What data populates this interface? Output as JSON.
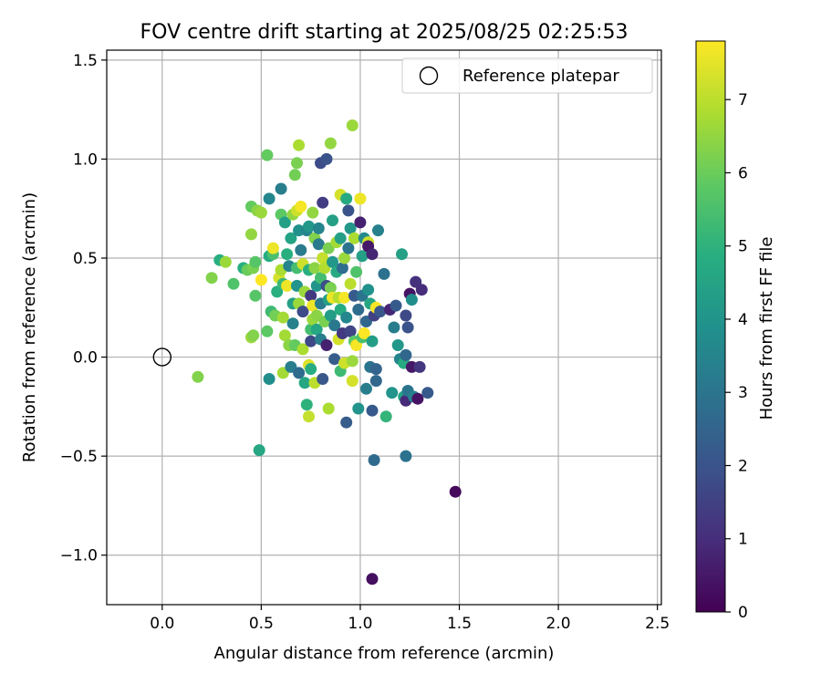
{
  "chart_data": {
    "type": "scatter",
    "title": "FOV centre drift starting at 2025/08/25 02:25:53",
    "xlabel": "Angular distance from reference (arcmin)",
    "ylabel": "Rotation from reference (arcmin)",
    "xlim": [
      -0.28,
      2.52
    ],
    "ylim": [
      -1.25,
      1.55
    ],
    "xticks": [
      0.0,
      0.5,
      1.0,
      1.5,
      2.0,
      2.5
    ],
    "xtick_labels": [
      "0.0",
      "0.5",
      "1.0",
      "1.5",
      "2.0",
      "2.5"
    ],
    "yticks": [
      -1.0,
      -0.5,
      0.0,
      0.5,
      1.0,
      1.5
    ],
    "ytick_labels": [
      "−1.0",
      "−0.5",
      "0.0",
      "0.5",
      "1.0",
      "1.5"
    ],
    "grid": true,
    "legend": {
      "placement": "top-right",
      "entries": [
        {
          "label": "Reference platepar",
          "marker": "open-circle"
        }
      ]
    },
    "reference_point": {
      "x": 0.0,
      "y": 0.0
    },
    "colorbar": {
      "label": "Hours from first FF file",
      "min": 0,
      "max": 7.8,
      "ticks": [
        0,
        1,
        2,
        3,
        4,
        5,
        6,
        7
      ],
      "tick_labels": [
        "0",
        "1",
        "2",
        "3",
        "4",
        "5",
        "6",
        "7"
      ],
      "colormap": "viridis"
    },
    "points": [
      {
        "x": 1.48,
        "y": -0.68,
        "c": 0.2
      },
      {
        "x": 1.06,
        "y": -1.12,
        "c": 0.3
      },
      {
        "x": 1.07,
        "y": -0.52,
        "c": 2.7
      },
      {
        "x": 1.23,
        "y": -0.5,
        "c": 2.9
      },
      {
        "x": 0.49,
        "y": -0.47,
        "c": 4.6
      },
      {
        "x": 0.18,
        "y": -0.1,
        "c": 6.3
      },
      {
        "x": 0.25,
        "y": 0.4,
        "c": 6.3
      },
      {
        "x": 0.29,
        "y": 0.49,
        "c": 4.9
      },
      {
        "x": 0.32,
        "y": 0.48,
        "c": 6.6
      },
      {
        "x": 0.36,
        "y": 0.37,
        "c": 5.6
      },
      {
        "x": 0.41,
        "y": 0.45,
        "c": 4.9
      },
      {
        "x": 0.43,
        "y": 0.44,
        "c": 6.0
      },
      {
        "x": 0.46,
        "y": 0.45,
        "c": 6.2
      },
      {
        "x": 0.45,
        "y": 0.62,
        "c": 6.5
      },
      {
        "x": 0.45,
        "y": 0.1,
        "c": 6.6
      },
      {
        "x": 0.46,
        "y": 0.11,
        "c": 6.3
      },
      {
        "x": 0.45,
        "y": 0.76,
        "c": 5.9
      },
      {
        "x": 0.48,
        "y": 0.74,
        "c": 6.4
      },
      {
        "x": 0.5,
        "y": 0.73,
        "c": 6.6
      },
      {
        "x": 0.47,
        "y": 0.31,
        "c": 5.7
      },
      {
        "x": 0.47,
        "y": 0.48,
        "c": 5.7
      },
      {
        "x": 0.5,
        "y": 0.39,
        "c": 7.8
      },
      {
        "x": 0.53,
        "y": 1.02,
        "c": 5.9
      },
      {
        "x": 0.54,
        "y": 0.8,
        "c": 3.6
      },
      {
        "x": 0.53,
        "y": 0.13,
        "c": 5.8
      },
      {
        "x": 0.54,
        "y": -0.11,
        "c": 3.8
      },
      {
        "x": 0.54,
        "y": 0.51,
        "c": 4.8
      },
      {
        "x": 0.55,
        "y": 0.23,
        "c": 5.3
      },
      {
        "x": 0.56,
        "y": 0.52,
        "c": 5.5
      },
      {
        "x": 0.56,
        "y": 0.55,
        "c": 7.6
      },
      {
        "x": 0.57,
        "y": 0.21,
        "c": 6.1
      },
      {
        "x": 0.58,
        "y": 0.33,
        "c": 4.9
      },
      {
        "x": 0.59,
        "y": 0.4,
        "c": 7.3
      },
      {
        "x": 0.6,
        "y": 0.85,
        "c": 3.3
      },
      {
        "x": 0.6,
        "y": 0.72,
        "c": 5.8
      },
      {
        "x": 0.6,
        "y": 0.44,
        "c": 6.8
      },
      {
        "x": 0.61,
        "y": 0.37,
        "c": 5.2
      },
      {
        "x": 0.61,
        "y": -0.08,
        "c": 6.7
      },
      {
        "x": 0.61,
        "y": 0.2,
        "c": 6.7
      },
      {
        "x": 0.62,
        "y": 0.68,
        "c": 4.4
      },
      {
        "x": 0.62,
        "y": 0.11,
        "c": 6.7
      },
      {
        "x": 0.63,
        "y": 0.36,
        "c": 7.6
      },
      {
        "x": 0.63,
        "y": 0.52,
        "c": 4.9
      },
      {
        "x": 0.64,
        "y": 0.46,
        "c": 3.5
      },
      {
        "x": 0.64,
        "y": 0.06,
        "c": 6.4
      },
      {
        "x": 0.65,
        "y": 0.6,
        "c": 4.5
      },
      {
        "x": 0.65,
        "y": -0.05,
        "c": 3.3
      },
      {
        "x": 0.66,
        "y": 0.72,
        "c": 6.5
      },
      {
        "x": 0.66,
        "y": 0.27,
        "c": 4.4
      },
      {
        "x": 0.66,
        "y": 0.17,
        "c": 3.4
      },
      {
        "x": 0.67,
        "y": 0.92,
        "c": 6.1
      },
      {
        "x": 0.67,
        "y": 0.06,
        "c": 5.9
      },
      {
        "x": 0.68,
        "y": 0.98,
        "c": 6.2
      },
      {
        "x": 0.68,
        "y": 0.74,
        "c": 7.2
      },
      {
        "x": 0.68,
        "y": 0.45,
        "c": 5.4
      },
      {
        "x": 0.68,
        "y": 0.36,
        "c": 4.0
      },
      {
        "x": 0.69,
        "y": 1.07,
        "c": 6.8
      },
      {
        "x": 0.69,
        "y": 0.64,
        "c": 3.9
      },
      {
        "x": 0.69,
        "y": 0.27,
        "c": 6.6
      },
      {
        "x": 0.69,
        "y": -0.08,
        "c": 2.7
      },
      {
        "x": 0.7,
        "y": 0.54,
        "c": 3.2
      },
      {
        "x": 0.7,
        "y": 0.76,
        "c": 7.7
      },
      {
        "x": 0.71,
        "y": 0.47,
        "c": 7.2
      },
      {
        "x": 0.71,
        "y": 0.23,
        "c": 1.8
      },
      {
        "x": 0.71,
        "y": 0.04,
        "c": 6.8
      },
      {
        "x": 0.72,
        "y": 0.33,
        "c": 6.6
      },
      {
        "x": 0.72,
        "y": -0.13,
        "c": 4.6
      },
      {
        "x": 0.73,
        "y": 0.64,
        "c": 3.5
      },
      {
        "x": 0.73,
        "y": -0.24,
        "c": 5.0
      },
      {
        "x": 0.74,
        "y": 0.66,
        "c": 4.1
      },
      {
        "x": 0.74,
        "y": 0.44,
        "c": 4.9
      },
      {
        "x": 0.74,
        "y": -0.04,
        "c": 7.4
      },
      {
        "x": 0.74,
        "y": -0.3,
        "c": 7.1
      },
      {
        "x": 0.75,
        "y": 0.14,
        "c": 5.4
      },
      {
        "x": 0.75,
        "y": 0.08,
        "c": 1.7
      },
      {
        "x": 0.75,
        "y": 0.31,
        "c": 1.3
      },
      {
        "x": 0.75,
        "y": -0.06,
        "c": 4.8
      },
      {
        "x": 0.76,
        "y": 0.26,
        "c": 7.6
      },
      {
        "x": 0.76,
        "y": 0.19,
        "c": 6.6
      },
      {
        "x": 0.76,
        "y": 0.73,
        "c": 6.5
      },
      {
        "x": 0.77,
        "y": 0.6,
        "c": 6.3
      },
      {
        "x": 0.77,
        "y": 0.45,
        "c": 6.4
      },
      {
        "x": 0.77,
        "y": -0.13,
        "c": 7.0
      },
      {
        "x": 0.78,
        "y": 0.36,
        "c": 4.0
      },
      {
        "x": 0.78,
        "y": 0.21,
        "c": 6.4
      },
      {
        "x": 0.78,
        "y": 0.14,
        "c": 4.6
      },
      {
        "x": 0.79,
        "y": 0.65,
        "c": 3.5
      },
      {
        "x": 0.79,
        "y": 0.57,
        "c": 3.2
      },
      {
        "x": 0.8,
        "y": 0.98,
        "c": 1.8
      },
      {
        "x": 0.8,
        "y": 0.4,
        "c": 5.4
      },
      {
        "x": 0.8,
        "y": 0.27,
        "c": 3.2
      },
      {
        "x": 0.8,
        "y": 0.09,
        "c": 3.3
      },
      {
        "x": 0.81,
        "y": 0.78,
        "c": 1.4
      },
      {
        "x": 0.81,
        "y": 0.5,
        "c": 7.1
      },
      {
        "x": 0.81,
        "y": -0.11,
        "c": 2.1
      },
      {
        "x": 0.82,
        "y": 0.18,
        "c": 6.2
      },
      {
        "x": 0.82,
        "y": 0.45,
        "c": 6.9
      },
      {
        "x": 0.83,
        "y": 1.0,
        "c": 2.0
      },
      {
        "x": 0.83,
        "y": 0.36,
        "c": 1.9
      },
      {
        "x": 0.83,
        "y": 0.06,
        "c": 0.7
      },
      {
        "x": 0.84,
        "y": 0.55,
        "c": 6.2
      },
      {
        "x": 0.84,
        "y": 0.29,
        "c": 4.4
      },
      {
        "x": 0.84,
        "y": -0.26,
        "c": 6.8
      },
      {
        "x": 0.85,
        "y": 1.08,
        "c": 6.5
      },
      {
        "x": 0.85,
        "y": 0.35,
        "c": 6.2
      },
      {
        "x": 0.85,
        "y": 0.21,
        "c": 4.3
      },
      {
        "x": 0.86,
        "y": 0.69,
        "c": 4.4
      },
      {
        "x": 0.86,
        "y": 0.48,
        "c": 4.1
      },
      {
        "x": 0.86,
        "y": 0.3,
        "c": 7.6
      },
      {
        "x": 0.87,
        "y": 0.16,
        "c": 3.1
      },
      {
        "x": 0.87,
        "y": -0.01,
        "c": 2.3
      },
      {
        "x": 0.88,
        "y": 0.43,
        "c": 4.7
      },
      {
        "x": 0.88,
        "y": 0.58,
        "c": 6.7
      },
      {
        "x": 0.89,
        "y": 0.3,
        "c": 6.9
      },
      {
        "x": 0.89,
        "y": 0.09,
        "c": 7.3
      },
      {
        "x": 0.9,
        "y": 0.82,
        "c": 7.3
      },
      {
        "x": 0.9,
        "y": 0.6,
        "c": 4.4
      },
      {
        "x": 0.9,
        "y": 0.24,
        "c": 4.8
      },
      {
        "x": 0.9,
        "y": -0.07,
        "c": 5.3
      },
      {
        "x": 0.91,
        "y": 0.45,
        "c": 2.8
      },
      {
        "x": 0.91,
        "y": 0.12,
        "c": 1.3
      },
      {
        "x": 0.92,
        "y": 0.5,
        "c": 6.6
      },
      {
        "x": 0.92,
        "y": 0.3,
        "c": 7.7
      },
      {
        "x": 0.92,
        "y": -0.03,
        "c": 7.2
      },
      {
        "x": 0.93,
        "y": 0.8,
        "c": 4.7
      },
      {
        "x": 0.93,
        "y": 0.2,
        "c": 3.6
      },
      {
        "x": 0.93,
        "y": -0.33,
        "c": 2.3
      },
      {
        "x": 0.94,
        "y": 0.74,
        "c": 2.0
      },
      {
        "x": 0.94,
        "y": 0.55,
        "c": 3.0
      },
      {
        "x": 0.95,
        "y": 0.65,
        "c": 4.1
      },
      {
        "x": 0.95,
        "y": 0.37,
        "c": 7.0
      },
      {
        "x": 0.95,
        "y": 0.13,
        "c": 1.6
      },
      {
        "x": 0.96,
        "y": 1.17,
        "c": 6.6
      },
      {
        "x": 0.96,
        "y": -0.12,
        "c": 7.3
      },
      {
        "x": 0.96,
        "y": -0.02,
        "c": 6.6
      },
      {
        "x": 0.97,
        "y": 0.6,
        "c": 6.8
      },
      {
        "x": 0.97,
        "y": 0.31,
        "c": 2.2
      },
      {
        "x": 0.97,
        "y": 0.08,
        "c": 5.8
      },
      {
        "x": 0.98,
        "y": 0.43,
        "c": 5.6
      },
      {
        "x": 0.98,
        "y": 0.06,
        "c": 7.7
      },
      {
        "x": 0.99,
        "y": 0.24,
        "c": 2.7
      },
      {
        "x": 0.99,
        "y": -0.26,
        "c": 4.0
      },
      {
        "x": 1.0,
        "y": 0.8,
        "c": 7.6
      },
      {
        "x": 1.0,
        "y": 0.68,
        "c": 0.7
      },
      {
        "x": 1.01,
        "y": 0.51,
        "c": 4.4
      },
      {
        "x": 1.01,
        "y": 0.31,
        "c": 3.0
      },
      {
        "x": 1.01,
        "y": 0.1,
        "c": 5.5
      },
      {
        "x": 1.02,
        "y": 0.12,
        "c": 7.8
      },
      {
        "x": 1.02,
        "y": 0.6,
        "c": 3.7
      },
      {
        "x": 1.03,
        "y": -0.16,
        "c": 3.3
      },
      {
        "x": 1.03,
        "y": 0.18,
        "c": 2.6
      },
      {
        "x": 1.04,
        "y": 0.34,
        "c": 3.9
      },
      {
        "x": 1.04,
        "y": 0.58,
        "c": 7.2
      },
      {
        "x": 1.04,
        "y": 0.56,
        "c": 0.5
      },
      {
        "x": 1.05,
        "y": 0.27,
        "c": 4.6
      },
      {
        "x": 1.05,
        "y": -0.05,
        "c": 3.0
      },
      {
        "x": 1.06,
        "y": 0.52,
        "c": 0.8
      },
      {
        "x": 1.06,
        "y": -0.27,
        "c": 2.2
      },
      {
        "x": 1.06,
        "y": 0.08,
        "c": 4.3
      },
      {
        "x": 1.07,
        "y": 0.21,
        "c": 1.5
      },
      {
        "x": 1.08,
        "y": -0.12,
        "c": 2.6
      },
      {
        "x": 1.08,
        "y": 0.25,
        "c": 7.7
      },
      {
        "x": 1.08,
        "y": -0.06,
        "c": 2.5
      },
      {
        "x": 1.09,
        "y": 0.64,
        "c": 3.4
      },
      {
        "x": 1.1,
        "y": 0.23,
        "c": 2.1
      },
      {
        "x": 1.12,
        "y": 0.42,
        "c": 2.9
      },
      {
        "x": 1.13,
        "y": -0.3,
        "c": 5.1
      },
      {
        "x": 1.15,
        "y": 0.24,
        "c": 0.8
      },
      {
        "x": 1.16,
        "y": -0.18,
        "c": 4.0
      },
      {
        "x": 1.17,
        "y": 0.15,
        "c": 3.3
      },
      {
        "x": 1.18,
        "y": 0.26,
        "c": 2.2
      },
      {
        "x": 1.19,
        "y": 0.06,
        "c": 4.1
      },
      {
        "x": 1.2,
        "y": -0.01,
        "c": 3.5
      },
      {
        "x": 1.21,
        "y": 0.52,
        "c": 4.4
      },
      {
        "x": 1.22,
        "y": -0.2,
        "c": 4.5
      },
      {
        "x": 1.22,
        "y": -0.03,
        "c": 4.7
      },
      {
        "x": 1.23,
        "y": 0.21,
        "c": 1.7
      },
      {
        "x": 1.23,
        "y": 0.01,
        "c": 2.6
      },
      {
        "x": 1.23,
        "y": -0.22,
        "c": 0.9
      },
      {
        "x": 1.24,
        "y": 0.15,
        "c": 2.0
      },
      {
        "x": 1.24,
        "y": -0.17,
        "c": 3.0
      },
      {
        "x": 1.25,
        "y": 0.32,
        "c": 0.4
      },
      {
        "x": 1.26,
        "y": 0.29,
        "c": 3.8
      },
      {
        "x": 1.26,
        "y": -0.05,
        "c": 0.5
      },
      {
        "x": 1.27,
        "y": -0.2,
        "c": 3.4
      },
      {
        "x": 1.28,
        "y": 0.38,
        "c": 1.1
      },
      {
        "x": 1.29,
        "y": -0.21,
        "c": 0.4
      },
      {
        "x": 1.3,
        "y": -0.05,
        "c": 1.2
      },
      {
        "x": 1.31,
        "y": 0.34,
        "c": 1.0
      },
      {
        "x": 1.34,
        "y": -0.18,
        "c": 2.2
      }
    ]
  }
}
